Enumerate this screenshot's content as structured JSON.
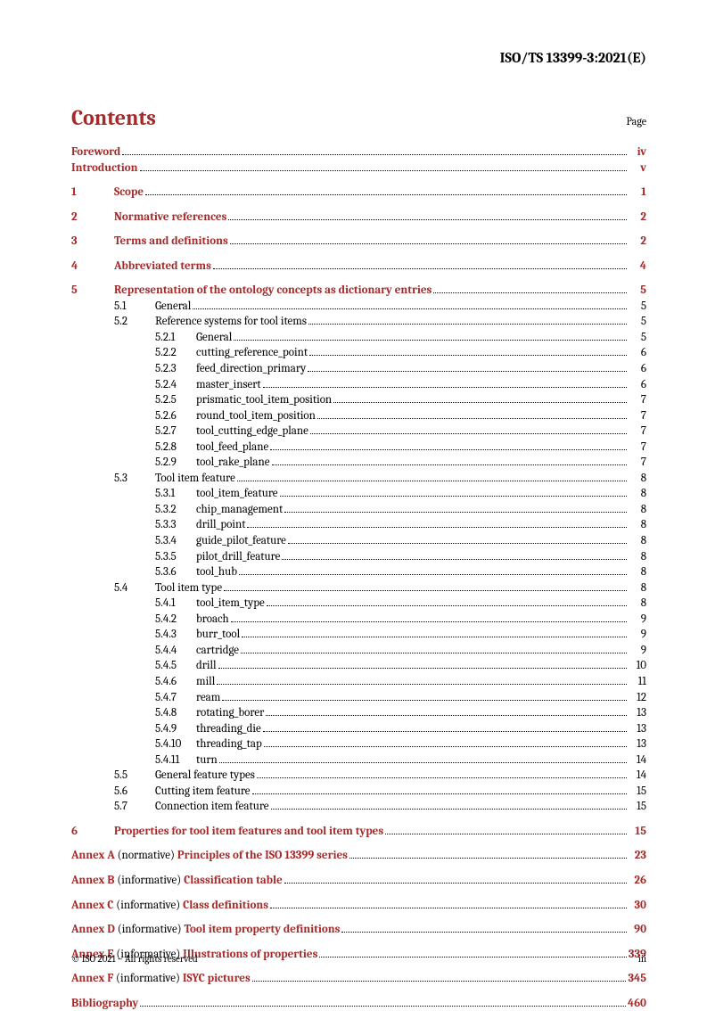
{
  "doc_id": "ISO/TS 13399-3:2021(E)",
  "contents_title": "Contents",
  "page_label": "Page",
  "indent": {
    "level1_num_width": 48,
    "level2_indent": 48,
    "level2_num_width": 46,
    "level3_indent": 94,
    "level3_num_width": 46
  },
  "entries": [
    {
      "type": "front",
      "title": "Foreword",
      "page": "iv"
    },
    {
      "type": "front",
      "title": "Introduction",
      "page": "v"
    },
    {
      "type": "level1",
      "num": "1",
      "title": "Scope",
      "page": "1",
      "gap": true
    },
    {
      "type": "level1",
      "num": "2",
      "title": "Normative references",
      "page": "2",
      "gap": true
    },
    {
      "type": "level1",
      "num": "3",
      "title": "Terms and definitions",
      "page": "2",
      "gap": true
    },
    {
      "type": "level1",
      "num": "4",
      "title": "Abbreviated terms",
      "page": "4",
      "gap": true
    },
    {
      "type": "level1",
      "num": "5",
      "title": "Representation of the ontology concepts as dictionary entries",
      "page": "5",
      "gap": true
    },
    {
      "type": "level2",
      "num": "5.1",
      "title": "General",
      "page": "5"
    },
    {
      "type": "level2",
      "num": "5.2",
      "title": "Reference systems for tool items",
      "page": "5"
    },
    {
      "type": "level3",
      "num": "5.2.1",
      "title": "General",
      "page": "5"
    },
    {
      "type": "level3",
      "num": "5.2.2",
      "title": "cutting_reference_point",
      "page": "6"
    },
    {
      "type": "level3",
      "num": "5.2.3",
      "title": "feed_direction_primary",
      "page": "6"
    },
    {
      "type": "level3",
      "num": "5.2.4",
      "title": "master_insert",
      "page": "6"
    },
    {
      "type": "level3",
      "num": "5.2.5",
      "title": "prismatic_tool_item_position",
      "page": "7"
    },
    {
      "type": "level3",
      "num": "5.2.6",
      "title": "round_tool_item_position",
      "page": "7"
    },
    {
      "type": "level3",
      "num": "5.2.7",
      "title": "tool_cutting_edge_plane",
      "page": "7"
    },
    {
      "type": "level3",
      "num": "5.2.8",
      "title": "tool_feed_plane",
      "page": "7"
    },
    {
      "type": "level3",
      "num": "5.2.9",
      "title": "tool_rake_plane",
      "page": "7"
    },
    {
      "type": "level2",
      "num": "5.3",
      "title": "Tool item feature",
      "page": "8"
    },
    {
      "type": "level3",
      "num": "5.3.1",
      "title": "tool_item_feature",
      "page": "8"
    },
    {
      "type": "level3",
      "num": "5.3.2",
      "title": "chip_management",
      "page": "8"
    },
    {
      "type": "level3",
      "num": "5.3.3",
      "title": "drill_point",
      "page": "8"
    },
    {
      "type": "level3",
      "num": "5.3.4",
      "title": "guide_pilot_feature",
      "page": "8"
    },
    {
      "type": "level3",
      "num": "5.3.5",
      "title": "pilot_drill_feature",
      "page": "8"
    },
    {
      "type": "level3",
      "num": "5.3.6",
      "title": "tool_hub",
      "page": "8"
    },
    {
      "type": "level2",
      "num": "5.4",
      "title": "Tool item type",
      "page": "8"
    },
    {
      "type": "level3",
      "num": "5.4.1",
      "title": "tool_item_type",
      "page": "8"
    },
    {
      "type": "level3",
      "num": "5.4.2",
      "title": "broach",
      "page": "9"
    },
    {
      "type": "level3",
      "num": "5.4.3",
      "title": "burr_tool",
      "page": "9"
    },
    {
      "type": "level3",
      "num": "5.4.4",
      "title": "cartridge",
      "page": "9"
    },
    {
      "type": "level3",
      "num": "5.4.5",
      "title": "drill",
      "page": "10"
    },
    {
      "type": "level3",
      "num": "5.4.6",
      "title": "mill",
      "page": "11"
    },
    {
      "type": "level3",
      "num": "5.4.7",
      "title": "ream",
      "page": "12"
    },
    {
      "type": "level3",
      "num": "5.4.8",
      "title": "rotating_borer",
      "page": "13"
    },
    {
      "type": "level3",
      "num": "5.4.9",
      "title": "threading_die",
      "page": "13"
    },
    {
      "type": "level3",
      "num": "5.4.10",
      "title": "threading_tap",
      "page": "13"
    },
    {
      "type": "level3",
      "num": "5.4.11",
      "title": "turn",
      "page": "14"
    },
    {
      "type": "level2",
      "num": "5.5",
      "title": "General feature types",
      "page": "14"
    },
    {
      "type": "level2",
      "num": "5.6",
      "title": "Cutting item feature",
      "page": "15"
    },
    {
      "type": "level2",
      "num": "5.7",
      "title": "Connection item feature",
      "page": "15"
    },
    {
      "type": "level1",
      "num": "6",
      "title": "Properties for tool item features and tool item types",
      "page": "15",
      "gap": true
    },
    {
      "type": "annex",
      "prefix": "Annex A",
      "note": "(normative)",
      "title": "Principles of the ISO 13399 series",
      "page": "23",
      "gap": true
    },
    {
      "type": "annex",
      "prefix": "Annex B",
      "note": "(informative)",
      "title": "Classification table",
      "page": "26",
      "gap": true
    },
    {
      "type": "annex",
      "prefix": "Annex C",
      "note": "(informative)",
      "title": "Class definitions",
      "page": "30",
      "gap": true
    },
    {
      "type": "annex",
      "prefix": "Annex D",
      "note": "(informative)",
      "title": "Tool item property definitions",
      "page": "90",
      "gap": true
    },
    {
      "type": "annex",
      "prefix": "Annex E",
      "note": "(informative)",
      "title": "Illustrations of properties",
      "page": "339",
      "gap": true
    },
    {
      "type": "annex",
      "prefix": "Annex F",
      "note": "(informative)",
      "title": "ISYC pictures",
      "page": "345",
      "gap": true
    },
    {
      "type": "front",
      "title": "Bibliography",
      "page": "460",
      "gap": true
    }
  ],
  "footer_left": "© ISO 2021 – All rights reserved",
  "footer_right": "iii"
}
